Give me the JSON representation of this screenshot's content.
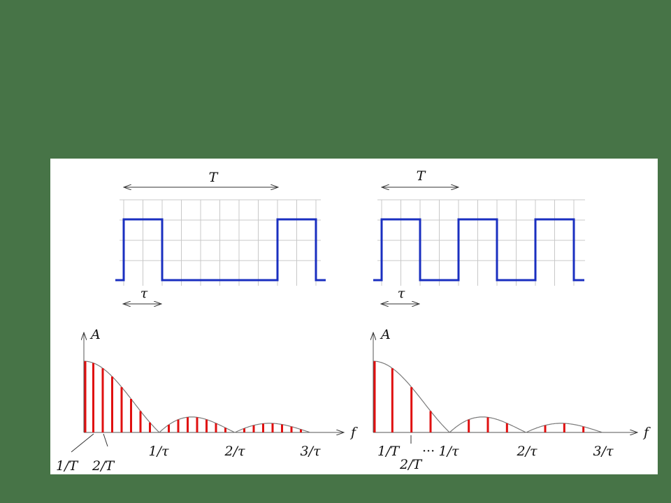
{
  "colors": {
    "background": "#477447",
    "panel": "#ffffff",
    "grid": "#c8c8c8",
    "pulse": "#1a2fc0",
    "spectral_line": "#e01010",
    "envelope": "#7a7a7a",
    "axis": "#555555"
  },
  "left": {
    "period_label": "T",
    "width_label": "τ",
    "ylabel": "A",
    "xlabel": "f",
    "tick_1_over_T": "1/T",
    "tick_2_over_T": "2/T",
    "tick_1_over_tau": "1/τ",
    "tick_2_over_tau": "2/τ",
    "tick_3_over_tau": "3/τ"
  },
  "right": {
    "period_label": "T",
    "width_label": "τ",
    "ylabel": "A",
    "xlabel": "f",
    "tick_1_over_T": "1/T",
    "tick_2_over_T": "2/T",
    "ellipsis": "···",
    "tick_1_over_tau": "1/τ",
    "tick_2_over_tau": "2/τ",
    "tick_3_over_tau": "3/τ"
  },
  "chart_data": [
    {
      "type": "line",
      "description_source": "pulse train, period T = 8τ",
      "period_in_tau": 8,
      "pulses_shown": 2
    },
    {
      "type": "line",
      "description_source": "pulse train, period T = 4τ",
      "period_in_tau": 4,
      "pulses_shown": 3
    },
    {
      "type": "bar",
      "envelope": "|sinc|",
      "harmonics_per_lobe": 8,
      "x_ticks": [
        "1/T",
        "2/T",
        "1/τ",
        "2/τ",
        "3/τ"
      ]
    },
    {
      "type": "bar",
      "envelope": "|sinc|",
      "harmonics_per_lobe": 4,
      "x_ticks": [
        "1/T",
        "2/T",
        "1/τ",
        "2/τ",
        "3/τ"
      ]
    }
  ]
}
